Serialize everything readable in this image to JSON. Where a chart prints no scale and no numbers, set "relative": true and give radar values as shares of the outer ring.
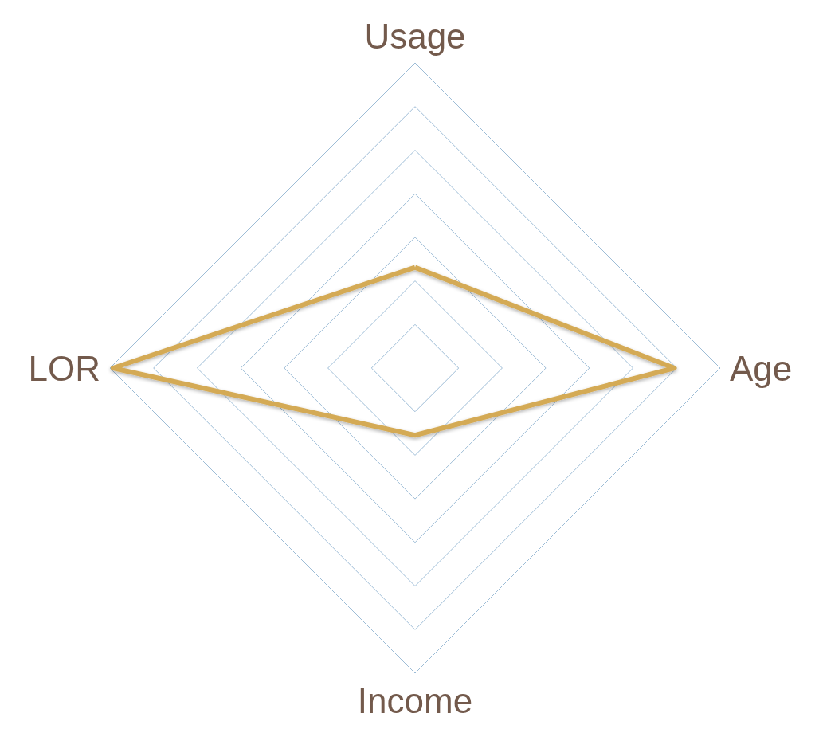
{
  "chart_data": {
    "type": "radar",
    "relative": true,
    "categories": [
      "Usage",
      "Age",
      "Income",
      "LOR"
    ],
    "series": [
      {
        "color": "#d4aa55",
        "values": [
          0.33,
          0.85,
          0.22,
          0.99
        ]
      }
    ],
    "legend": false,
    "marker": "none",
    "line_style": "solid"
  }
}
